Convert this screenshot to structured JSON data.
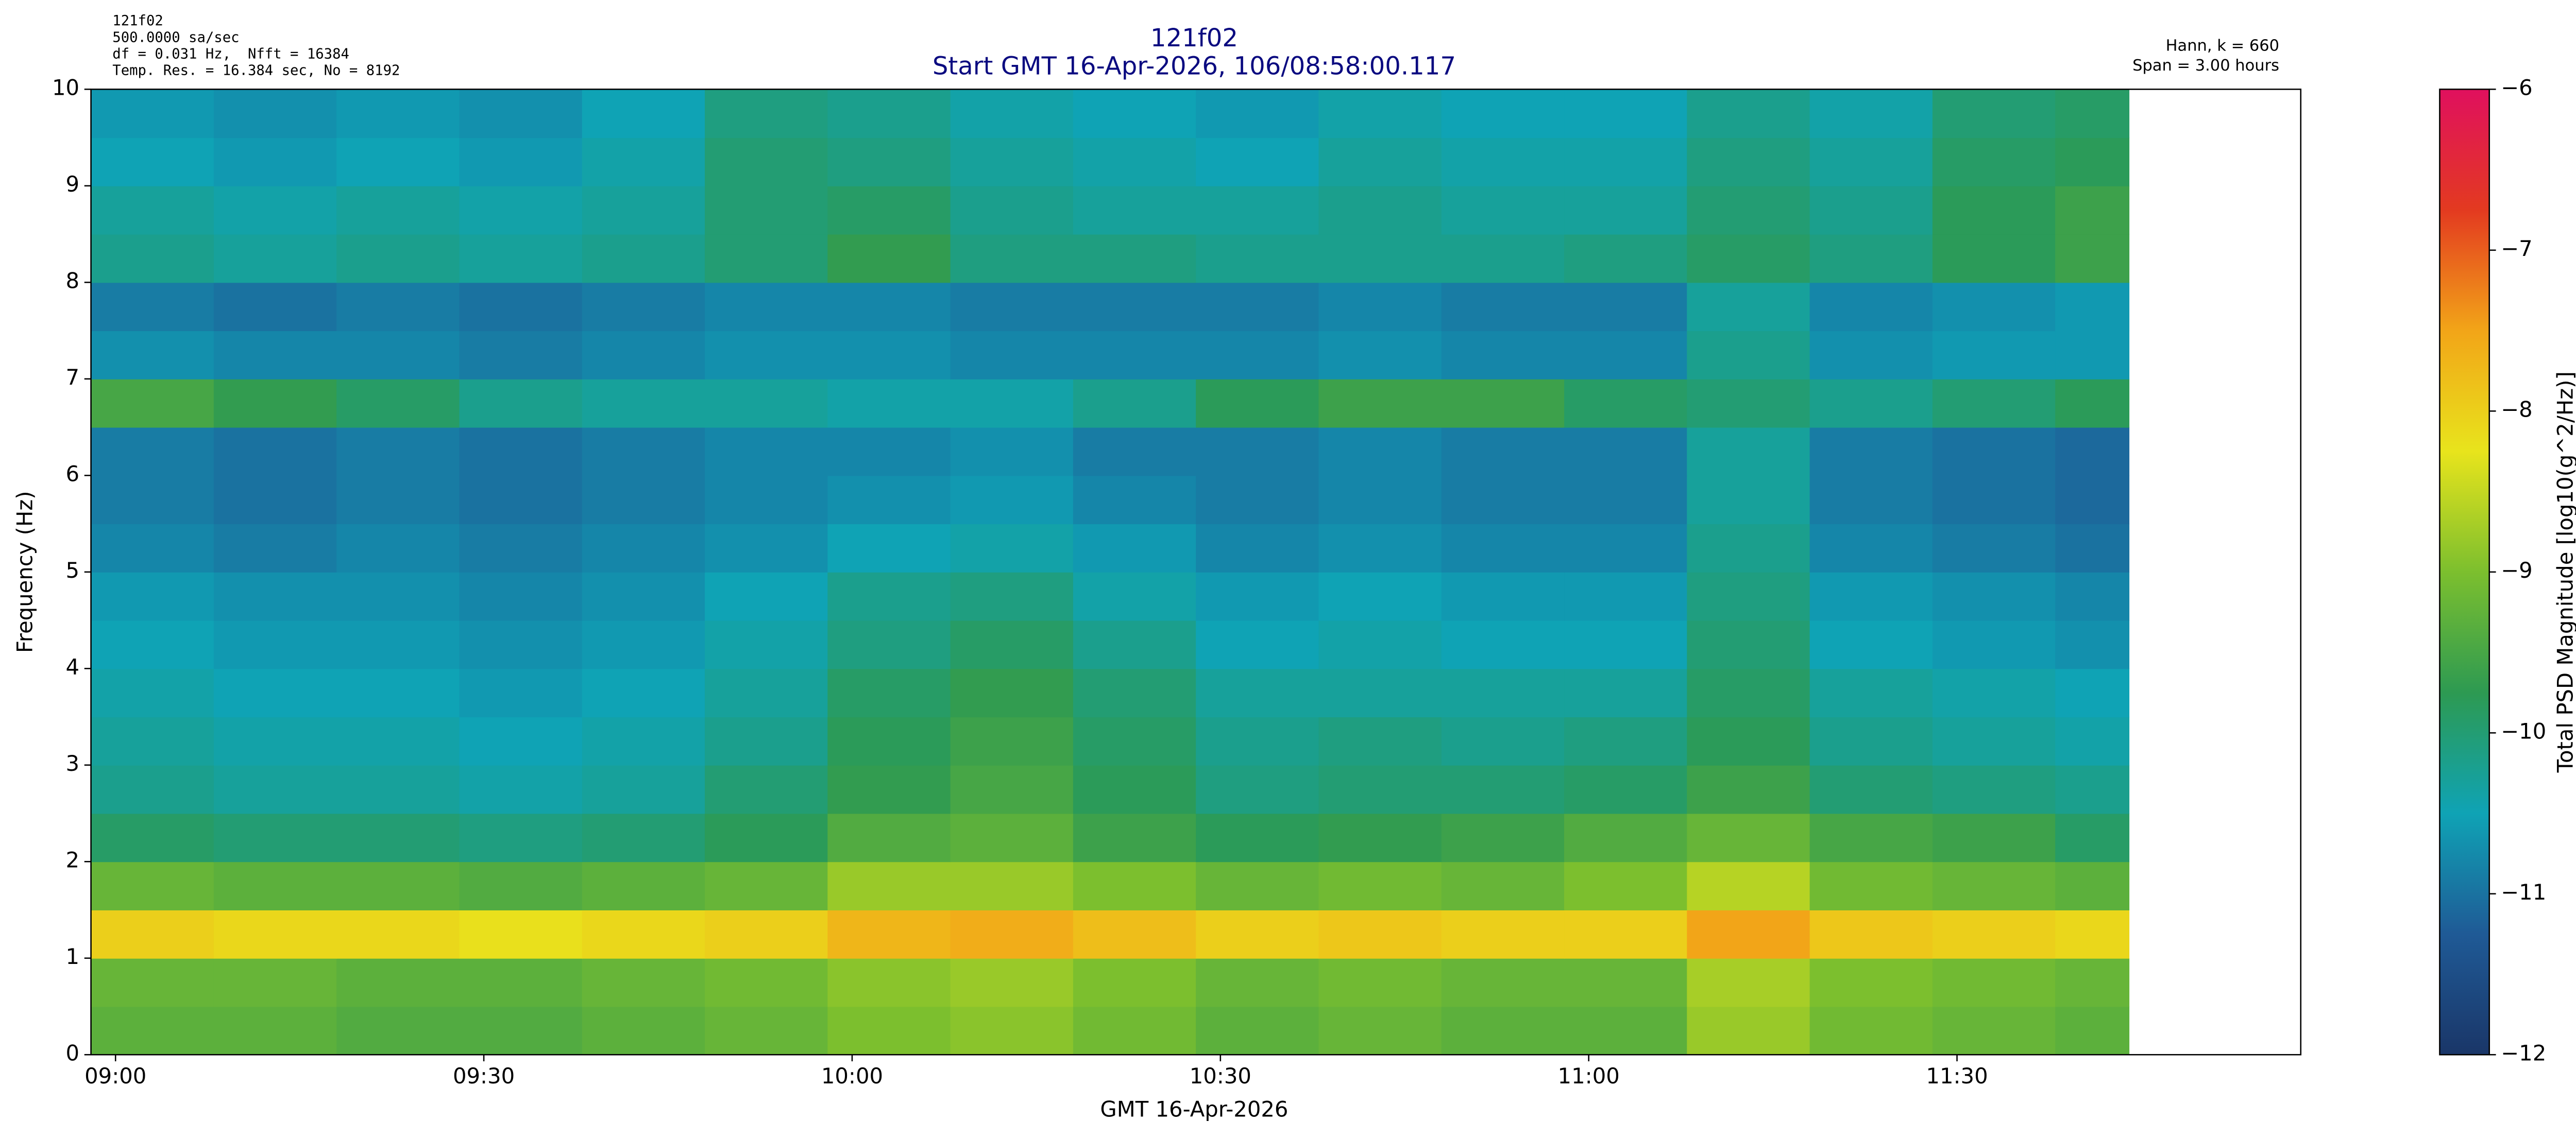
{
  "chart_data": {
    "type": "heatmap",
    "title": "121f02",
    "subtitle": "Start GMT 16-Apr-2026, 106/08:58:00.117",
    "info_left": [
      "121f02",
      "500.0000 sa/sec",
      "df = 0.031 Hz,  Nfft = 16384",
      "Temp. Res. = 16.384 sec, No = 8192"
    ],
    "info_right": [
      "Hann, k = 660",
      "Span = 3.00 hours"
    ],
    "x_label": "GMT 16-Apr-2026",
    "y_label": "Frequency (Hz)",
    "xlim": [
      538,
      718
    ],
    "ylim": [
      0,
      10
    ],
    "xticks": [
      {
        "value": 540,
        "label": "09:00"
      },
      {
        "value": 570,
        "label": "09:30"
      },
      {
        "value": 600,
        "label": "10:00"
      },
      {
        "value": 630,
        "label": "10:30"
      },
      {
        "value": 660,
        "label": "11:00"
      },
      {
        "value": 690,
        "label": "11:30"
      }
    ],
    "yticks": [
      0,
      1,
      2,
      3,
      4,
      5,
      6,
      7,
      8,
      9,
      10
    ],
    "x_edges": [
      538,
      548,
      558,
      568,
      578,
      588,
      598,
      608,
      618,
      628,
      638,
      648,
      658,
      668,
      678,
      688,
      698,
      704
    ],
    "y_edges": [
      0,
      0.5,
      1,
      1.5,
      2,
      2.5,
      3,
      3.5,
      4,
      4.5,
      5,
      5.5,
      6,
      6.5,
      7,
      7.5,
      8,
      8.5,
      9,
      9.5,
      10
    ],
    "z": [
      [
        -9.3,
        -9.3,
        -9.4,
        -9.4,
        -9.3,
        -9.2,
        -9.0,
        -8.9,
        -9.1,
        -9.3,
        -9.2,
        -9.3,
        -9.3,
        -8.8,
        -9.1,
        -9.2,
        -9.3
      ],
      [
        -9.2,
        -9.2,
        -9.3,
        -9.3,
        -9.2,
        -9.1,
        -8.9,
        -8.8,
        -9.0,
        -9.2,
        -9.1,
        -9.2,
        -9.2,
        -8.7,
        -9.0,
        -9.1,
        -9.2
      ],
      [
        -8.0,
        -8.1,
        -8.1,
        -8.2,
        -8.1,
        -8.0,
        -7.7,
        -7.6,
        -7.8,
        -8.0,
        -7.9,
        -8.0,
        -8.0,
        -7.5,
        -7.9,
        -8.0,
        -8.1
      ],
      [
        -9.2,
        -9.3,
        -9.3,
        -9.4,
        -9.3,
        -9.2,
        -8.8,
        -8.8,
        -9.0,
        -9.2,
        -9.1,
        -9.2,
        -9.0,
        -8.6,
        -9.1,
        -9.2,
        -9.3
      ],
      [
        -9.9,
        -10.0,
        -10.0,
        -10.1,
        -10.0,
        -9.8,
        -9.4,
        -9.3,
        -9.6,
        -9.8,
        -9.7,
        -9.6,
        -9.4,
        -9.2,
        -9.5,
        -9.6,
        -9.9
      ],
      [
        -10.2,
        -10.3,
        -10.3,
        -10.4,
        -10.3,
        -10.0,
        -9.7,
        -9.5,
        -9.8,
        -10.1,
        -10.0,
        -10.0,
        -9.9,
        -9.6,
        -10.0,
        -10.1,
        -10.2
      ],
      [
        -10.3,
        -10.4,
        -10.4,
        -10.5,
        -10.4,
        -10.2,
        -9.8,
        -9.6,
        -9.9,
        -10.2,
        -10.1,
        -10.2,
        -10.1,
        -9.8,
        -10.2,
        -10.3,
        -10.4
      ],
      [
        -10.4,
        -10.5,
        -10.5,
        -10.6,
        -10.5,
        -10.3,
        -9.9,
        -9.7,
        -10.0,
        -10.3,
        -10.3,
        -10.3,
        -10.3,
        -9.9,
        -10.3,
        -10.4,
        -10.5
      ],
      [
        -10.5,
        -10.6,
        -10.6,
        -10.7,
        -10.6,
        -10.4,
        -10.1,
        -9.9,
        -10.2,
        -10.5,
        -10.4,
        -10.5,
        -10.5,
        -10.0,
        -10.5,
        -10.6,
        -10.7
      ],
      [
        -10.6,
        -10.7,
        -10.7,
        -10.8,
        -10.7,
        -10.5,
        -10.2,
        -10.1,
        -10.4,
        -10.6,
        -10.5,
        -10.6,
        -10.6,
        -10.1,
        -10.6,
        -10.7,
        -10.8
      ],
      [
        -10.8,
        -10.9,
        -10.8,
        -10.9,
        -10.8,
        -10.7,
        -10.5,
        -10.4,
        -10.6,
        -10.8,
        -10.7,
        -10.8,
        -10.8,
        -10.2,
        -10.8,
        -10.9,
        -11.0
      ],
      [
        -10.9,
        -11.0,
        -10.9,
        -11.0,
        -10.9,
        -10.8,
        -10.7,
        -10.6,
        -10.8,
        -10.9,
        -10.8,
        -10.9,
        -10.9,
        -10.3,
        -10.9,
        -11.0,
        -11.1
      ],
      [
        -10.9,
        -11.0,
        -10.9,
        -11.0,
        -10.9,
        -10.8,
        -10.8,
        -10.7,
        -10.9,
        -10.9,
        -10.8,
        -10.9,
        -10.9,
        -10.3,
        -10.9,
        -11.0,
        -11.1
      ],
      [
        -9.5,
        -9.7,
        -9.9,
        -10.2,
        -10.3,
        -10.3,
        -10.4,
        -10.4,
        -10.2,
        -9.8,
        -9.6,
        -9.6,
        -9.9,
        -10.0,
        -10.2,
        -10.0,
        -9.8
      ],
      [
        -10.7,
        -10.8,
        -10.8,
        -10.9,
        -10.8,
        -10.7,
        -10.7,
        -10.8,
        -10.8,
        -10.8,
        -10.7,
        -10.8,
        -10.8,
        -10.2,
        -10.7,
        -10.6,
        -10.6
      ],
      [
        -10.9,
        -11.0,
        -10.9,
        -11.0,
        -10.9,
        -10.8,
        -10.8,
        -10.9,
        -10.9,
        -10.9,
        -10.8,
        -10.9,
        -10.9,
        -10.3,
        -10.8,
        -10.7,
        -10.6
      ],
      [
        -10.2,
        -10.3,
        -10.2,
        -10.3,
        -10.2,
        -10.0,
        -9.7,
        -10.1,
        -10.1,
        -10.2,
        -10.2,
        -10.2,
        -10.1,
        -9.9,
        -10.1,
        -9.8,
        -9.6
      ],
      [
        -10.3,
        -10.4,
        -10.3,
        -10.4,
        -10.3,
        -10.0,
        -9.9,
        -10.2,
        -10.3,
        -10.3,
        -10.2,
        -10.3,
        -10.3,
        -10.0,
        -10.2,
        -9.8,
        -9.6
      ],
      [
        -10.5,
        -10.6,
        -10.5,
        -10.6,
        -10.4,
        -10.0,
        -10.1,
        -10.3,
        -10.4,
        -10.5,
        -10.3,
        -10.4,
        -10.4,
        -10.1,
        -10.3,
        -9.9,
        -9.8
      ],
      [
        -10.6,
        -10.7,
        -10.6,
        -10.7,
        -10.5,
        -10.1,
        -10.2,
        -10.4,
        -10.5,
        -10.6,
        -10.4,
        -10.5,
        -10.5,
        -10.2,
        -10.4,
        -10.0,
        -9.9
      ]
    ],
    "colorbar": {
      "label": "Total PSD Magnitude [log10(g^2/Hz)]",
      "clim": [
        -12,
        -6
      ],
      "ticks": [
        {
          "value": -12,
          "label": "−12"
        },
        {
          "value": -11,
          "label": "−11"
        },
        {
          "value": -10,
          "label": "−10"
        },
        {
          "value": -9,
          "label": "−9"
        },
        {
          "value": -8,
          "label": "−8"
        },
        {
          "value": -7,
          "label": "−7"
        },
        {
          "value": -6,
          "label": "−6"
        }
      ],
      "colors": [
        "#1a3668",
        "#1f5a96",
        "#0fa3b5",
        "#2d9a52",
        "#7cbf2e",
        "#e8e41c",
        "#f2a518",
        "#e33a20",
        "#e0105e"
      ]
    }
  }
}
